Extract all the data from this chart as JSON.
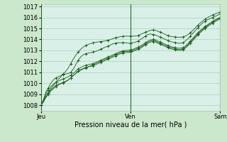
{
  "bg_color": "#cce8cc",
  "plot_bg_color": "#d8f0e8",
  "grid_color": "#a0c8b0",
  "line_color": "#1a5c1a",
  "marker_color": "#1a5c1a",
  "xlabel": "Pression niveau de la mer( hPa )",
  "xlabel_fontsize": 7,
  "tick_fontsize": 6,
  "ylim": [
    1007.5,
    1017.2
  ],
  "yticks": [
    1008,
    1009,
    1010,
    1011,
    1012,
    1013,
    1014,
    1015,
    1016,
    1017
  ],
  "xtick_labels": [
    "Jeu",
    "Ven",
    "Sam"
  ],
  "xtick_positions": [
    0,
    36,
    72
  ],
  "total_points": 73,
  "series": [
    [
      1008.0,
      1008.5,
      1009.2,
      1009.6,
      1010.0,
      1010.3,
      1010.5,
      1010.6,
      1010.7,
      1010.8,
      1010.85,
      1010.9,
      1011.0,
      1011.3,
      1011.7,
      1012.1,
      1012.4,
      1012.6,
      1012.7,
      1012.75,
      1012.8,
      1012.85,
      1012.9,
      1013.0,
      1013.1,
      1013.2,
      1013.3,
      1013.4,
      1013.5,
      1013.6,
      1013.65,
      1013.7,
      1013.7,
      1013.7,
      1013.7,
      1013.65,
      1013.65,
      1013.7,
      1013.75,
      1013.85,
      1014.0,
      1014.15,
      1014.3,
      1014.45,
      1014.5,
      1014.45,
      1014.4,
      1014.3,
      1014.2,
      1014.1,
      1014.0,
      1013.9,
      1013.8,
      1013.75,
      1013.7,
      1013.65,
      1013.65,
      1013.7,
      1013.85,
      1014.05,
      1014.3,
      1014.55,
      1014.8,
      1015.05,
      1015.3,
      1015.5,
      1015.65,
      1015.8,
      1015.9,
      1016.0,
      1016.1,
      1016.2,
      1016.35
    ],
    [
      1008.0,
      1008.4,
      1009.0,
      1009.4,
      1009.7,
      1009.9,
      1010.1,
      1010.2,
      1010.3,
      1010.4,
      1010.5,
      1010.6,
      1010.75,
      1010.9,
      1011.1,
      1011.3,
      1011.45,
      1011.55,
      1011.65,
      1011.7,
      1011.75,
      1011.8,
      1011.9,
      1012.0,
      1012.1,
      1012.2,
      1012.3,
      1012.4,
      1012.5,
      1012.6,
      1012.7,
      1012.8,
      1012.9,
      1012.95,
      1013.0,
      1013.0,
      1013.05,
      1013.1,
      1013.2,
      1013.3,
      1013.4,
      1013.55,
      1013.7,
      1013.85,
      1013.95,
      1014.0,
      1013.95,
      1013.85,
      1013.75,
      1013.65,
      1013.55,
      1013.45,
      1013.35,
      1013.3,
      1013.25,
      1013.2,
      1013.2,
      1013.25,
      1013.4,
      1013.6,
      1013.85,
      1014.1,
      1014.35,
      1014.6,
      1014.82,
      1015.0,
      1015.18,
      1015.35,
      1015.5,
      1015.65,
      1015.78,
      1015.9,
      1016.0
    ],
    [
      1008.0,
      1008.3,
      1008.8,
      1009.1,
      1009.4,
      1009.6,
      1009.8,
      1009.9,
      1010.0,
      1010.1,
      1010.2,
      1010.3,
      1010.5,
      1010.7,
      1010.9,
      1011.1,
      1011.25,
      1011.35,
      1011.45,
      1011.5,
      1011.55,
      1011.6,
      1011.7,
      1011.8,
      1011.9,
      1012.0,
      1012.1,
      1012.2,
      1012.3,
      1012.4,
      1012.5,
      1012.6,
      1012.7,
      1012.75,
      1012.8,
      1012.8,
      1012.85,
      1012.9,
      1013.0,
      1013.1,
      1013.2,
      1013.35,
      1013.5,
      1013.65,
      1013.75,
      1013.8,
      1013.75,
      1013.65,
      1013.55,
      1013.45,
      1013.35,
      1013.25,
      1013.15,
      1013.1,
      1013.05,
      1013.0,
      1013.0,
      1013.05,
      1013.2,
      1013.4,
      1013.65,
      1013.9,
      1014.15,
      1014.4,
      1014.62,
      1014.82,
      1015.0,
      1015.18,
      1015.33,
      1015.48,
      1015.62,
      1015.75,
      1015.88
    ],
    [
      1008.0,
      1008.3,
      1008.7,
      1009.0,
      1009.3,
      1009.5,
      1009.7,
      1009.85,
      1009.95,
      1010.05,
      1010.15,
      1010.3,
      1010.5,
      1010.7,
      1010.9,
      1011.1,
      1011.2,
      1011.3,
      1011.4,
      1011.5,
      1011.6,
      1011.7,
      1011.8,
      1011.9,
      1012.0,
      1012.1,
      1012.2,
      1012.3,
      1012.4,
      1012.5,
      1012.6,
      1012.7,
      1012.8,
      1012.85,
      1012.9,
      1012.9,
      1012.95,
      1013.0,
      1013.1,
      1013.2,
      1013.3,
      1013.45,
      1013.6,
      1013.75,
      1013.85,
      1013.9,
      1013.85,
      1013.75,
      1013.65,
      1013.55,
      1013.45,
      1013.35,
      1013.25,
      1013.2,
      1013.15,
      1013.1,
      1013.1,
      1013.15,
      1013.3,
      1013.5,
      1013.75,
      1014.0,
      1014.25,
      1014.5,
      1014.72,
      1014.92,
      1015.1,
      1015.28,
      1015.43,
      1015.58,
      1015.72,
      1015.85,
      1015.95
    ],
    [
      1008.0,
      1008.3,
      1008.8,
      1009.1,
      1009.5,
      1009.8,
      1010.1,
      1010.35,
      1010.6,
      1010.85,
      1011.1,
      1011.4,
      1011.8,
      1012.2,
      1012.55,
      1012.85,
      1013.1,
      1013.3,
      1013.45,
      1013.55,
      1013.62,
      1013.68,
      1013.73,
      1013.77,
      1013.8,
      1013.83,
      1013.87,
      1013.93,
      1014.0,
      1014.08,
      1014.15,
      1014.2,
      1014.25,
      1014.28,
      1014.3,
      1014.3,
      1014.3,
      1014.3,
      1014.3,
      1014.35,
      1014.45,
      1014.55,
      1014.65,
      1014.75,
      1014.82,
      1014.85,
      1014.82,
      1014.75,
      1014.65,
      1014.55,
      1014.45,
      1014.35,
      1014.28,
      1014.25,
      1014.22,
      1014.2,
      1014.2,
      1014.22,
      1014.3,
      1014.42,
      1014.6,
      1014.82,
      1015.05,
      1015.28,
      1015.5,
      1015.68,
      1015.85,
      1016.0,
      1016.12,
      1016.22,
      1016.32,
      1016.42,
      1016.5
    ]
  ]
}
